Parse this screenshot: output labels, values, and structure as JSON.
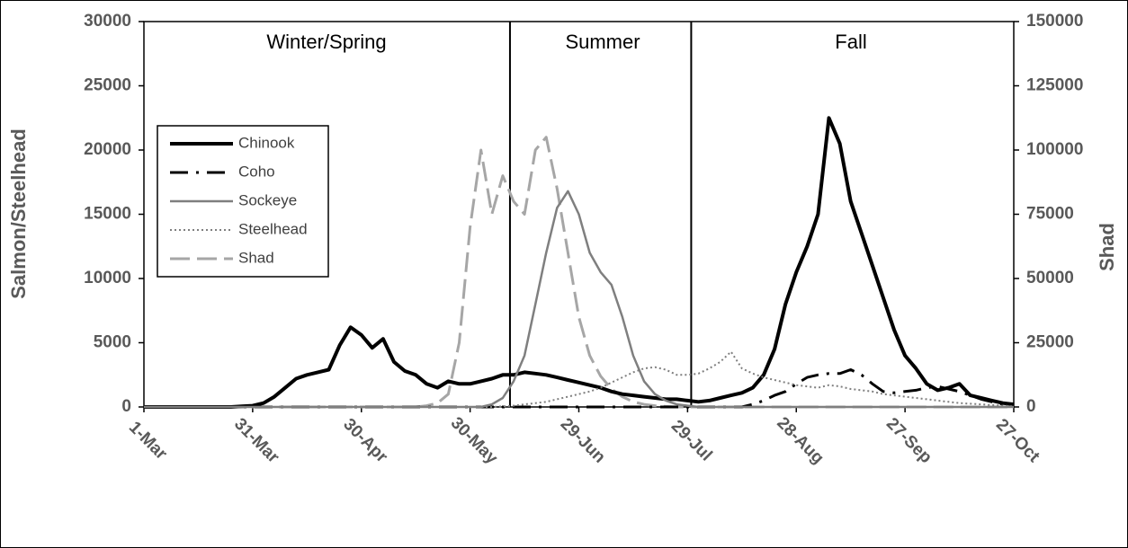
{
  "chart_data": {
    "type": "line",
    "y_label": "Salmon/Steelhead",
    "y2_label": "Shad",
    "season_labels": [
      "Winter/Spring",
      "Summer",
      "Fall"
    ],
    "dividers": [
      101,
      151
    ],
    "x": [
      0,
      3,
      6,
      9,
      12,
      15,
      18,
      21,
      24,
      27,
      30,
      33,
      36,
      39,
      42,
      45,
      48,
      51,
      54,
      57,
      60,
      63,
      66,
      69,
      72,
      75,
      78,
      81,
      84,
      87,
      90,
      93,
      96,
      99,
      102,
      105,
      108,
      111,
      114,
      117,
      120,
      123,
      126,
      129,
      132,
      135,
      138,
      141,
      144,
      147,
      150,
      153,
      156,
      159,
      162,
      165,
      168,
      171,
      174,
      177,
      180,
      183,
      186,
      189,
      192,
      195,
      198,
      201,
      204,
      207,
      210,
      213,
      216,
      219,
      222,
      225,
      228,
      231,
      234,
      237,
      240
    ],
    "xlim": [
      0,
      240
    ],
    "xticks": [
      {
        "value": 0,
        "label": "1-Mar"
      },
      {
        "value": 30,
        "label": "31-Mar"
      },
      {
        "value": 60,
        "label": "30-Apr"
      },
      {
        "value": 90,
        "label": "30-May"
      },
      {
        "value": 120,
        "label": "29-Jun"
      },
      {
        "value": 150,
        "label": "29-Jul"
      },
      {
        "value": 180,
        "label": "28-Aug"
      },
      {
        "value": 210,
        "label": "27-Sep"
      },
      {
        "value": 240,
        "label": "27-Oct"
      }
    ],
    "ylim": [
      0,
      30000
    ],
    "yticks": [
      0,
      5000,
      10000,
      15000,
      20000,
      25000,
      30000
    ],
    "y2lim": [
      0,
      150000
    ],
    "y2ticks": [
      0,
      25000,
      50000,
      75000,
      100000,
      125000,
      150000
    ],
    "legend": "upper left",
    "series": [
      {
        "name": "Chinook",
        "color": "#000000",
        "linewidth": 4,
        "linestyle": "solid",
        "values": [
          0,
          0,
          0,
          0,
          0,
          0,
          0,
          0,
          0,
          50,
          100,
          300,
          800,
          1500,
          2200,
          2500,
          2700,
          2900,
          4800,
          6200,
          5600,
          4600,
          5300,
          3500,
          2800,
          2500,
          1800,
          1500,
          2000,
          1800,
          1800,
          2000,
          2200,
          2500,
          2500,
          2700,
          2600,
          2500,
          2300,
          2100,
          1900,
          1700,
          1500,
          1200,
          1000,
          900,
          800,
          700,
          600,
          600,
          500,
          400,
          500,
          700,
          900,
          1100,
          1500,
          2500,
          4500,
          8000,
          10500,
          12500,
          15000,
          22500,
          20500,
          16000,
          13500,
          11000,
          8500,
          6000,
          4000,
          3000,
          1800,
          1300,
          1500,
          1800,
          900,
          700,
          500,
          300,
          200
        ]
      },
      {
        "name": "Coho",
        "color": "#000000",
        "linewidth": 3,
        "linestyle": "dashdot",
        "values": [
          0,
          0,
          0,
          0,
          0,
          0,
          0,
          0,
          0,
          0,
          0,
          0,
          0,
          0,
          0,
          0,
          0,
          0,
          0,
          0,
          0,
          0,
          0,
          0,
          0,
          0,
          0,
          0,
          0,
          0,
          0,
          0,
          0,
          0,
          0,
          0,
          0,
          0,
          0,
          0,
          0,
          0,
          0,
          0,
          0,
          0,
          0,
          0,
          0,
          0,
          0,
          0,
          0,
          0,
          0,
          0,
          200,
          500,
          900,
          1200,
          1800,
          2300,
          2500,
          2600,
          2600,
          2900,
          2500,
          1800,
          1200,
          1100,
          1200,
          1300,
          1500,
          1600,
          1400,
          1200,
          900,
          600,
          400,
          200,
          100
        ]
      },
      {
        "name": "Sockeye",
        "color": "#7f7f7f",
        "linewidth": 2.5,
        "linestyle": "solid",
        "values": [
          0,
          0,
          0,
          0,
          0,
          0,
          0,
          0,
          0,
          0,
          0,
          0,
          0,
          0,
          0,
          0,
          0,
          0,
          0,
          0,
          0,
          0,
          0,
          0,
          0,
          0,
          0,
          0,
          0,
          0,
          0,
          0,
          200,
          700,
          2000,
          4000,
          8000,
          12000,
          15500,
          16800,
          15000,
          12000,
          10500,
          9500,
          7000,
          4000,
          2000,
          1000,
          500,
          200,
          100,
          0,
          0,
          0,
          0,
          0,
          0,
          0,
          0,
          0,
          0,
          0,
          0,
          0,
          0,
          0,
          0,
          0,
          0,
          0,
          0,
          0,
          0,
          0,
          0,
          0,
          0,
          0,
          0,
          0,
          0
        ]
      },
      {
        "name": "Steelhead",
        "color": "#7f7f7f",
        "linewidth": 2,
        "linestyle": "dotted",
        "values": [
          0,
          0,
          0,
          0,
          0,
          0,
          0,
          0,
          0,
          0,
          0,
          0,
          0,
          0,
          0,
          0,
          0,
          0,
          0,
          0,
          0,
          0,
          0,
          0,
          0,
          0,
          0,
          0,
          0,
          0,
          0,
          0,
          0,
          50,
          100,
          200,
          300,
          400,
          600,
          800,
          1000,
          1200,
          1500,
          1900,
          2300,
          2700,
          3000,
          3100,
          2900,
          2500,
          2500,
          2600,
          3000,
          3500,
          4300,
          3000,
          2600,
          2300,
          2100,
          1900,
          1700,
          1600,
          1500,
          1700,
          1600,
          1400,
          1300,
          1200,
          1000,
          900,
          800,
          700,
          600,
          500,
          400,
          300,
          250,
          200,
          150,
          100,
          50
        ]
      },
      {
        "name": "Shad",
        "color": "#a6a6a6",
        "linewidth": 3,
        "linestyle": "dashed",
        "axis": "y2",
        "values": [
          0,
          0,
          0,
          0,
          0,
          0,
          0,
          0,
          0,
          0,
          0,
          0,
          0,
          0,
          0,
          0,
          0,
          0,
          0,
          0,
          0,
          0,
          0,
          0,
          0,
          0,
          500,
          1500,
          5000,
          25000,
          70000,
          100000,
          75000,
          90000,
          80000,
          75000,
          100000,
          105000,
          85000,
          60000,
          35000,
          20000,
          12000,
          7000,
          4000,
          2000,
          1000,
          500,
          200,
          0,
          0,
          0,
          0,
          0,
          0,
          0,
          0,
          0,
          0,
          0,
          0,
          0,
          0,
          0,
          0,
          0,
          0,
          0,
          0,
          0,
          0,
          0,
          0,
          0,
          0,
          0,
          0,
          0,
          0,
          0,
          0
        ]
      }
    ]
  }
}
